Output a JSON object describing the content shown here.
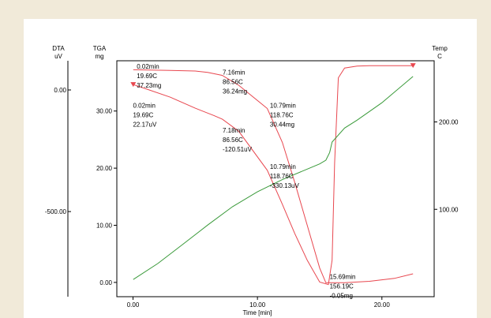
{
  "chart_data": {
    "type": "line",
    "title": "",
    "xlabel": "Time  [min]",
    "xlim": [
      -1.3,
      24.2
    ],
    "xticks": [
      0,
      10,
      20
    ],
    "xtick_labels": [
      "0.00",
      "10.00",
      "20.00"
    ],
    "axes": {
      "dta": {
        "title": "DTA",
        "unit": "uV",
        "lim": [
          -850,
          120
        ],
        "ticks": [
          0,
          -500
        ],
        "tick_labels": [
          "0.00",
          "-500.00"
        ]
      },
      "tga": {
        "title": "TGA",
        "unit": "mg",
        "lim": [
          -2.5,
          38.8
        ],
        "ticks": [
          0,
          10,
          20,
          30
        ],
        "tick_labels": [
          "0.00",
          "10.00",
          "20.00",
          "30.00"
        ]
      },
      "temp": {
        "title": "Temp",
        "unit": "C",
        "lim": [
          0,
          270
        ],
        "ticks": [
          100,
          200
        ],
        "tick_labels": [
          "100.00",
          "200.00"
        ]
      }
    },
    "series": [
      {
        "axis": "tga",
        "color": "#e8474f",
        "x": [
          0.02,
          3,
          5,
          6,
          7.16,
          8.5,
          10.79,
          12,
          13,
          14,
          15,
          15.5,
          15.69,
          17,
          19,
          21,
          22.5
        ],
        "y": [
          37.23,
          37.1,
          37.0,
          36.75,
          36.24,
          34.5,
          30.44,
          24.5,
          17.5,
          10.0,
          2.5,
          -0.05,
          -0.05,
          -0.06,
          0.2,
          0.7,
          1.5
        ]
      },
      {
        "axis": "dta",
        "color": "#e8474f",
        "x": [
          0.02,
          1,
          3,
          5,
          6.5,
          7.18,
          8.5,
          10.79,
          12,
          13,
          14,
          15,
          15.7,
          16.0,
          16.2,
          16.5,
          17,
          18,
          19,
          21,
          22.5
        ],
        "y": [
          22.17,
          5,
          -30,
          -75,
          -105,
          -120.51,
          -170,
          -330.13,
          -470,
          -590,
          -700,
          -790,
          -800,
          -700,
          -300,
          50,
          90,
          98,
          100,
          100,
          100
        ]
      },
      {
        "axis": "temp",
        "color": "#3a9a3a",
        "x": [
          0.02,
          2,
          4,
          6,
          8,
          10,
          12,
          14,
          15,
          15.5,
          15.8,
          16,
          17,
          18,
          20,
          22.5
        ],
        "y": [
          19.69,
          38,
          60,
          82,
          103,
          120,
          134,
          146,
          152,
          156.19,
          165,
          177,
          193,
          202,
          222,
          252
        ]
      }
    ],
    "markers": [
      {
        "axis": "dta",
        "x": 0.02,
        "y": 22.17,
        "shape": "triangle-down",
        "color": "#e8474f"
      },
      {
        "axis": "dta",
        "x": 22.5,
        "y": 100,
        "shape": "triangle-down",
        "color": "#e8474f"
      }
    ],
    "annotations": [
      {
        "axis": "tga",
        "x": 0.3,
        "y": 37.4,
        "lines": [
          "0.02min",
          "19.69C",
          "37.23mg"
        ]
      },
      {
        "axis": "tga",
        "x": 7.2,
        "y": 36.4,
        "lines": [
          "7.16min",
          "86.56C",
          "36.24mg"
        ]
      },
      {
        "axis": "tga",
        "x": 11.0,
        "y": 30.6,
        "lines": [
          "10.79min",
          "118.76C",
          "30.44mg"
        ]
      },
      {
        "axis": "tga",
        "x": 0.0,
        "y": 30.6,
        "lines": [
          "0.02min",
          "19.69C",
          "22.17uV"
        ]
      },
      {
        "axis": "tga",
        "x": 7.2,
        "y": 26.2,
        "lines": [
          "7.18min",
          "86.56C",
          "-120.51uV"
        ]
      },
      {
        "axis": "tga",
        "x": 11.0,
        "y": 19.9,
        "lines": [
          "10.79min",
          "118.76C",
          "-330.13uV"
        ]
      },
      {
        "axis": "tga",
        "x": 15.8,
        "y": 0.6,
        "lines": [
          "15.69min",
          "156.19C",
          "-0.05mg"
        ]
      }
    ]
  }
}
